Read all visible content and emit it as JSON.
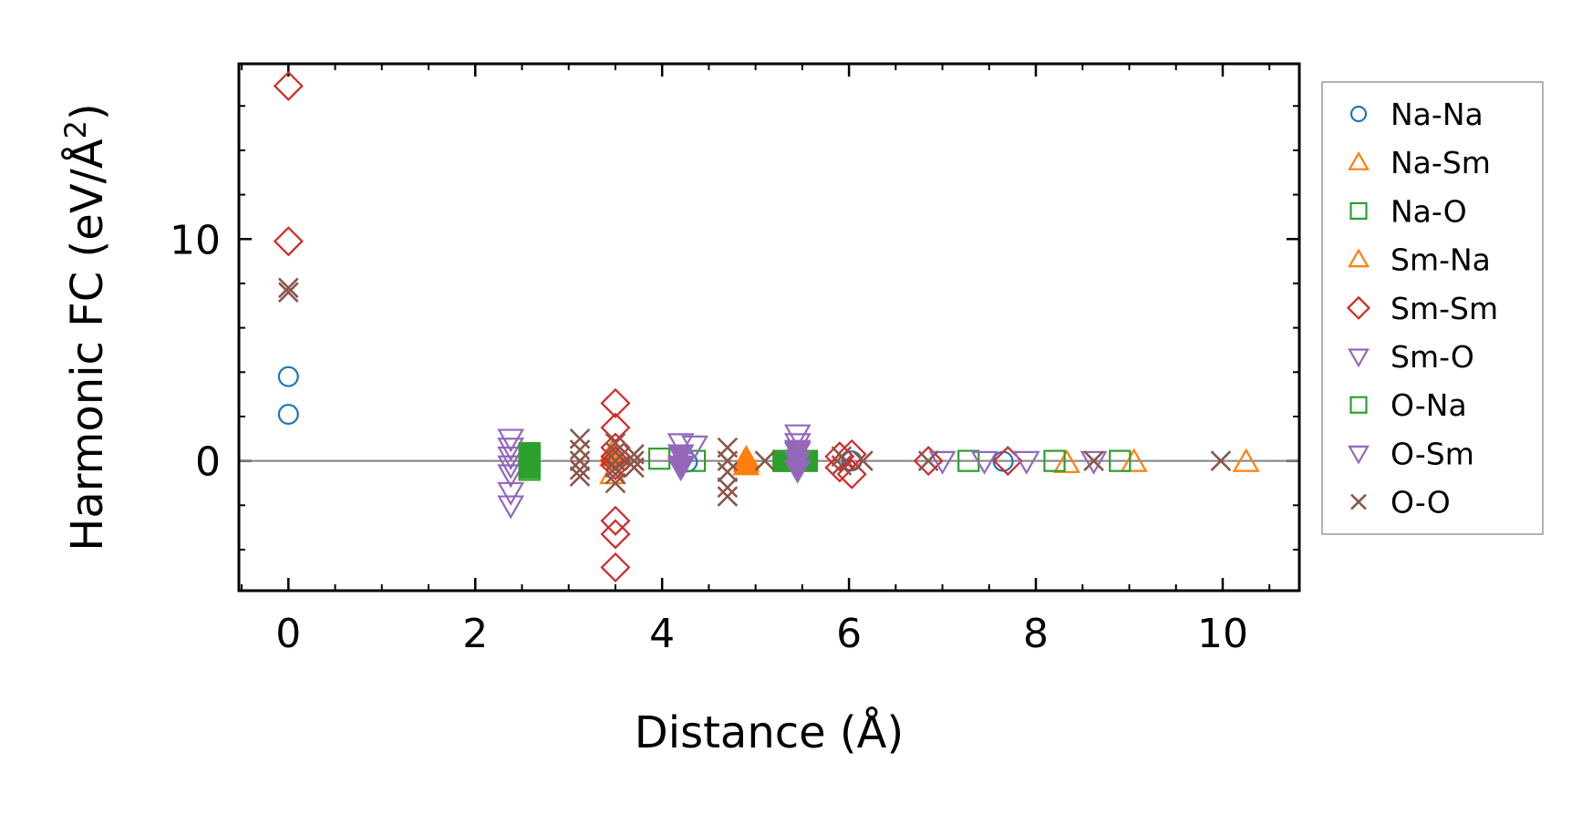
{
  "chart_data": {
    "type": "scatter",
    "xlabel": "Distance (Å)",
    "ylabel_main": "Harmonic FC (eV/Å",
    "ylabel_sup": "2",
    "ylabel_end": ")",
    "xlim": [
      -0.53,
      10.82
    ],
    "ylim": [
      -5.85,
      17.9
    ],
    "xticks": [
      0,
      2,
      4,
      6,
      8,
      10
    ],
    "xtick_labels": [
      "0",
      "2",
      "4",
      "6",
      "8",
      "10"
    ],
    "yticks": [
      0,
      10
    ],
    "ytick_labels": [
      "0",
      "10"
    ],
    "x_minor_step": 0.5,
    "y_minor_step": 2,
    "zero_line": true,
    "grid": false,
    "legend_position": "right-outside",
    "series": [
      {
        "name": "Na-Na",
        "marker": "circle",
        "color": "#1f77b4",
        "x": [
          0,
          0,
          4.27,
          5.43,
          6.03,
          7.65
        ],
        "y": [
          3.8,
          2.1,
          -0.05,
          0.05,
          0.0,
          -0.02
        ]
      },
      {
        "name": "Na-Sm",
        "marker": "triangle-up",
        "color": "#ff7f0e",
        "x": [
          3.47,
          3.47,
          4.9,
          5.35,
          8.33,
          9.05,
          10.25
        ],
        "y": [
          0.4,
          -0.6,
          -0.05,
          0.0,
          -0.1,
          -0.05,
          -0.05
        ]
      },
      {
        "name": "Na-O",
        "marker": "square",
        "color": "#2ca02c",
        "x": [
          2.58,
          2.58,
          2.58,
          3.97,
          4.35,
          5.3,
          7.28,
          8.2,
          8.9
        ],
        "y": [
          0.35,
          0.0,
          -0.4,
          0.1,
          0.0,
          0.0,
          0.0,
          0.0,
          0.0
        ]
      },
      {
        "name": "Sm-Na",
        "marker": "triangle-up-filled",
        "color": "#ff7f0e",
        "x": [
          3.47,
          4.9,
          4.9,
          5.5
        ],
        "y": [
          0.2,
          0.1,
          -0.2,
          -0.05
        ]
      },
      {
        "name": "Sm-Sm",
        "marker": "diamond",
        "color": "#d62728",
        "x": [
          0,
          0,
          3.5,
          3.5,
          3.5,
          3.5,
          3.5,
          3.5,
          3.5,
          3.5,
          3.5,
          5.9,
          5.9,
          6.03,
          6.03,
          6.85,
          7.7
        ],
        "y": [
          16.9,
          9.9,
          2.6,
          1.5,
          0.6,
          0.2,
          -0.2,
          -2.7,
          -3.3,
          -4.8,
          0.0,
          0.2,
          -0.3,
          0.3,
          -0.6,
          0.0,
          0.0
        ]
      },
      {
        "name": "Sm-O",
        "marker": "triangle-down",
        "color": "#9467bd",
        "x": [
          2.38,
          2.38,
          2.38,
          2.38,
          2.38,
          2.38,
          2.38,
          4.2,
          4.2,
          4.2,
          4.35,
          5.45,
          5.45,
          5.45,
          5.45,
          7.0,
          7.45,
          7.9,
          8.62
        ],
        "y": [
          1.0,
          0.6,
          0.2,
          -0.2,
          -0.6,
          -1.4,
          -2.0,
          0.8,
          0.3,
          -0.3,
          0.7,
          1.2,
          0.8,
          0.4,
          0.0,
          0.0,
          0.0,
          0.0,
          0.0
        ]
      },
      {
        "name": "O-Na",
        "marker": "square-filled",
        "color": "#2ca02c",
        "x": [
          2.58,
          2.58,
          2.58,
          5.3,
          5.55
        ],
        "y": [
          0.3,
          0.0,
          -0.3,
          0.0,
          0.0
        ]
      },
      {
        "name": "O-Sm",
        "marker": "triangle-down-filled",
        "color": "#9467bd",
        "x": [
          4.2,
          4.2,
          5.45,
          5.45,
          5.45
        ],
        "y": [
          0.3,
          -0.2,
          0.5,
          0.0,
          -0.4
        ]
      },
      {
        "name": "O-O",
        "marker": "x",
        "color": "#8c564b",
        "x": [
          0,
          0,
          3.12,
          3.12,
          3.12,
          3.12,
          3.12,
          3.5,
          3.5,
          3.5,
          3.5,
          3.5,
          3.5,
          3.7,
          3.7,
          3.7,
          4.7,
          4.7,
          4.7,
          4.7,
          4.7,
          5.1,
          5.92,
          5.92,
          6.15,
          6.85,
          8.62,
          9.98
        ],
        "y": [
          7.8,
          7.6,
          1.0,
          0.5,
          0.0,
          -0.4,
          -0.7,
          0.8,
          0.4,
          0.0,
          -0.3,
          -0.6,
          -1.0,
          0.3,
          0.0,
          -0.3,
          0.6,
          0.0,
          -0.5,
          -1.2,
          -1.6,
          0.0,
          0.2,
          -0.2,
          0.0,
          0.0,
          0.0,
          0.0
        ]
      }
    ]
  }
}
